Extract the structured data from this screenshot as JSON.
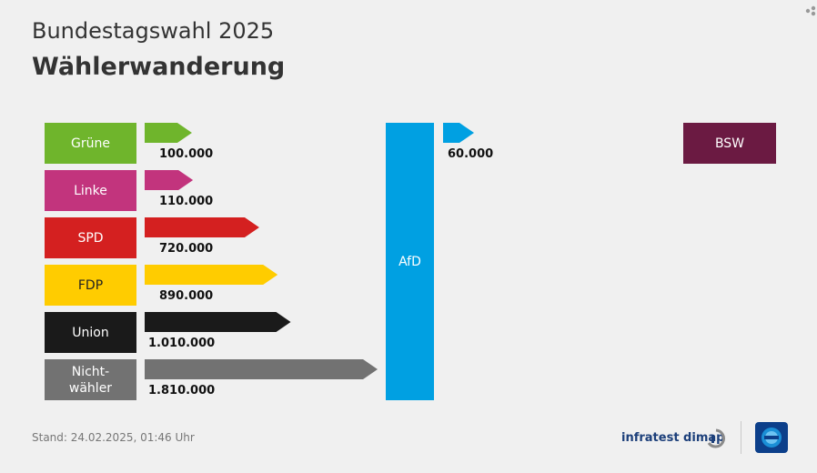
{
  "header": {
    "supertitle": "Bundestagswahl 2025",
    "title": "Wählerwanderung"
  },
  "chart_data": {
    "type": "bar",
    "target": "AfD",
    "categories": [
      "Grüne",
      "Linke",
      "SPD",
      "FDP",
      "Union",
      "Nicht-wähler"
    ],
    "values": [
      100000,
      110000,
      720000,
      890000,
      1010000,
      1810000
    ],
    "value_labels": [
      "100.000",
      "110.000",
      "720.000",
      "890.000",
      "1.010.000",
      "1.810.000"
    ],
    "colors": [
      "#6fb52c",
      "#c2347d",
      "#d42020",
      "#ffcc00",
      "#1a1a1a",
      "#727272"
    ],
    "outflows": [
      {
        "to": "BSW",
        "value": 60000,
        "value_label": "60.000",
        "color": "#6b1a42"
      }
    ]
  },
  "parties": [
    {
      "label": "Grüne"
    },
    {
      "label": "Linke"
    },
    {
      "label": "SPD"
    },
    {
      "label": "FDP"
    },
    {
      "label": "Union"
    },
    {
      "label_line1": "Nicht-",
      "label_line2": "wähler"
    }
  ],
  "footer": {
    "stand": "Stand:  24.02.2025, 01:46 Uhr",
    "brand": "infratest dimap"
  }
}
